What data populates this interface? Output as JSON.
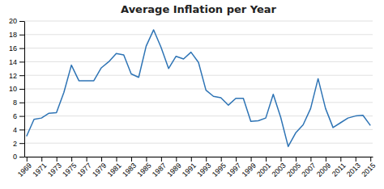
{
  "chart_data": {
    "type": "line",
    "title": "Average Inflation per Year",
    "x": [
      1969,
      1970,
      1971,
      1972,
      1973,
      1974,
      1975,
      1976,
      1977,
      1978,
      1979,
      1980,
      1981,
      1982,
      1983,
      1984,
      1985,
      1986,
      1987,
      1988,
      1989,
      1990,
      1991,
      1992,
      1993,
      1994,
      1995,
      1996,
      1997,
      1998,
      1999,
      2000,
      2001,
      2002,
      2003,
      2004,
      2005,
      2006,
      2007,
      2008,
      2009,
      2010,
      2011,
      2012,
      2013,
      2014,
      2015
    ],
    "values": [
      3.0,
      5.5,
      5.7,
      6.4,
      6.5,
      9.5,
      13.5,
      11.2,
      11.2,
      11.2,
      13.1,
      14.0,
      15.2,
      15.0,
      12.2,
      11.7,
      16.3,
      18.7,
      16.1,
      13.0,
      14.8,
      14.4,
      15.4,
      13.9,
      9.8,
      8.9,
      8.7,
      7.6,
      8.6,
      8.6,
      5.2,
      5.3,
      5.7,
      9.2,
      5.8,
      1.5,
      3.5,
      4.7,
      7.1,
      11.5,
      7.1,
      4.3,
      5.0,
      5.7,
      6.0,
      6.1,
      4.6
    ],
    "color": "#2E74B5",
    "xlim": [
      1968.7,
      2015.3
    ],
    "xticks": [
      1969,
      1971,
      1973,
      1975,
      1977,
      1979,
      1981,
      1983,
      1985,
      1987,
      1989,
      1991,
      1993,
      1995,
      1997,
      1999,
      2001,
      2003,
      2005,
      2007,
      2009,
      2011,
      2013,
      2015
    ],
    "ylim": [
      0,
      20
    ],
    "yticks": [
      0,
      2,
      4,
      6,
      8,
      10,
      12,
      14,
      16,
      18,
      20
    ],
    "grid": true
  }
}
